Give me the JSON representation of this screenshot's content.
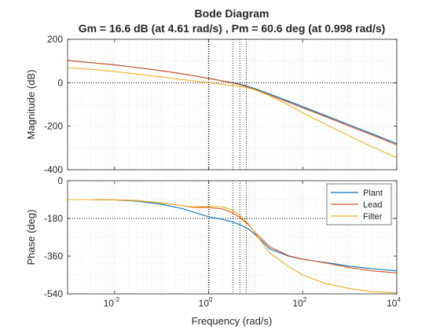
{
  "chart_data": {
    "type": "line",
    "title": "Bode Diagram",
    "subtitle": "Gm = 16.6 dB (at 4.61 rad/s) ,  Pm = 60.6 deg (at 0.998 rad/s)",
    "xlabel": "Frequency  (rad/s)",
    "x_scale": "log",
    "xlim": [
      0.001,
      10000
    ],
    "x_ticks": [
      {
        "value": 0.01,
        "base": "10",
        "exp": "-2"
      },
      {
        "value": 1,
        "base": "10",
        "exp": "0"
      },
      {
        "value": 100,
        "base": "10",
        "exp": "2"
      },
      {
        "value": 10000,
        "base": "10",
        "exp": "4"
      }
    ],
    "grid": true,
    "legend_position": "top-right",
    "markers": {
      "zero_line_style": "dotted",
      "frequency_lines": [
        1,
        3.3,
        4.61,
        6.3
      ]
    },
    "x": [
      0.001,
      0.003,
      0.01,
      0.03,
      0.1,
      0.3,
      0.5,
      1,
      2,
      3,
      4.61,
      7,
      10,
      20,
      50,
      100,
      300,
      1000,
      3000,
      10000
    ],
    "magnitude": {
      "ylabel": "Magnitude (dB)",
      "ylim": [
        -400,
        200
      ],
      "yticks": [
        "200",
        "0",
        "-200",
        "-400"
      ],
      "series": [
        {
          "name": "Plant",
          "color": "#0072BD",
          "values": [
            102,
            93,
            82,
            70,
            55,
            40,
            32,
            20,
            8,
            2,
            -6,
            -17,
            -28,
            -52,
            -85,
            -110,
            -150,
            -195,
            -235,
            -280
          ]
        },
        {
          "name": "Lead",
          "color": "#D95319",
          "values": [
            102,
            93,
            82,
            70,
            55,
            40,
            32,
            20,
            8,
            1,
            -9,
            -21,
            -32,
            -57,
            -90,
            -115,
            -155,
            -200,
            -240,
            -286
          ]
        },
        {
          "name": "Filter",
          "color": "#EDB120",
          "values": [
            70,
            62,
            52,
            40,
            27,
            14,
            8,
            0,
            -8,
            -12,
            -17,
            -24,
            -34,
            -60,
            -102,
            -138,
            -190,
            -245,
            -295,
            -345
          ]
        }
      ]
    },
    "phase": {
      "ylabel": "Phase (deg)",
      "ylim": [
        -540,
        0
      ],
      "yticks": [
        "0",
        "-180",
        "-360",
        "-540"
      ],
      "series": [
        {
          "name": "Plant",
          "color": "#0072BD",
          "values": [
            -90,
            -90,
            -92,
            -98,
            -112,
            -135,
            -152,
            -172,
            -185,
            -195,
            -210,
            -230,
            -260,
            -325,
            -360,
            -375,
            -390,
            -408,
            -420,
            -430
          ]
        },
        {
          "name": "Lead",
          "color": "#D95319",
          "values": [
            -90,
            -90,
            -91,
            -95,
            -106,
            -120,
            -128,
            -128,
            -135,
            -150,
            -175,
            -210,
            -250,
            -315,
            -358,
            -374,
            -392,
            -415,
            -430,
            -440
          ]
        },
        {
          "name": "Filter",
          "color": "#EDB120",
          "values": [
            -90,
            -90,
            -91,
            -95,
            -106,
            -120,
            -125,
            -122,
            -125,
            -138,
            -165,
            -205,
            -255,
            -345,
            -410,
            -450,
            -490,
            -515,
            -530,
            -535
          ]
        }
      ]
    }
  }
}
